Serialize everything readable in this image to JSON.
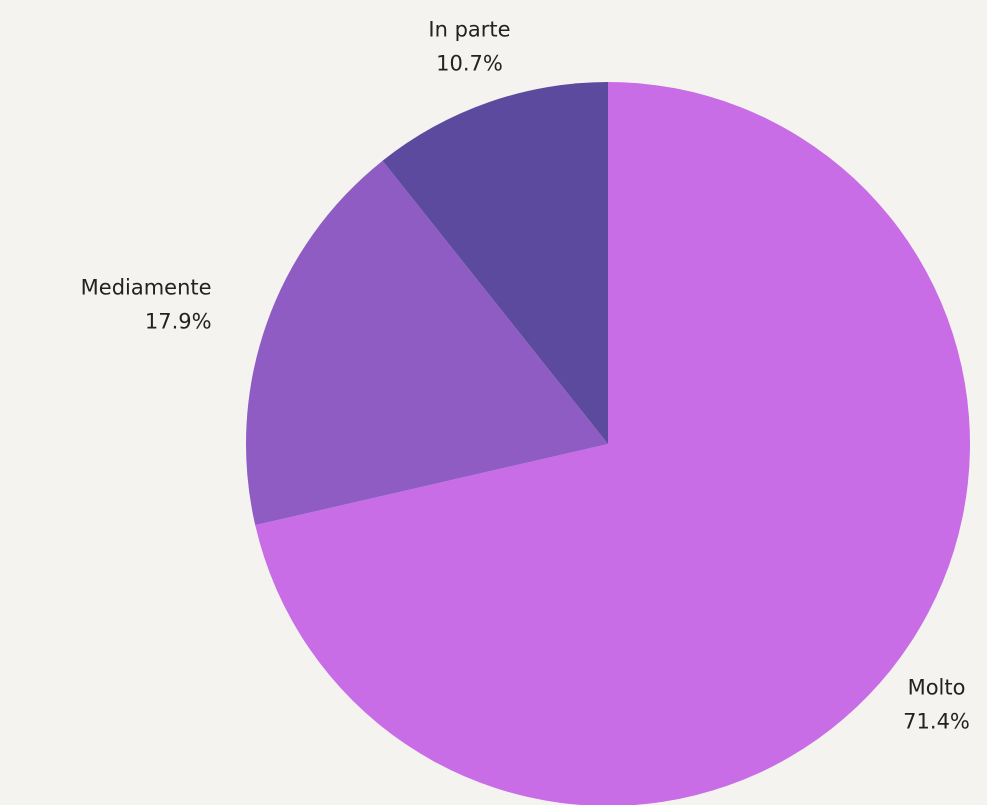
{
  "chart_data": {
    "type": "pie",
    "categories": [
      "Molto",
      "Mediamente",
      "In parte"
    ],
    "values": [
      71.4,
      17.9,
      10.7
    ],
    "value_labels": [
      "71.4%",
      "17.9%",
      "10.7%"
    ],
    "colors": [
      "#c86de6",
      "#8f5cc4",
      "#5c4a9f"
    ]
  }
}
